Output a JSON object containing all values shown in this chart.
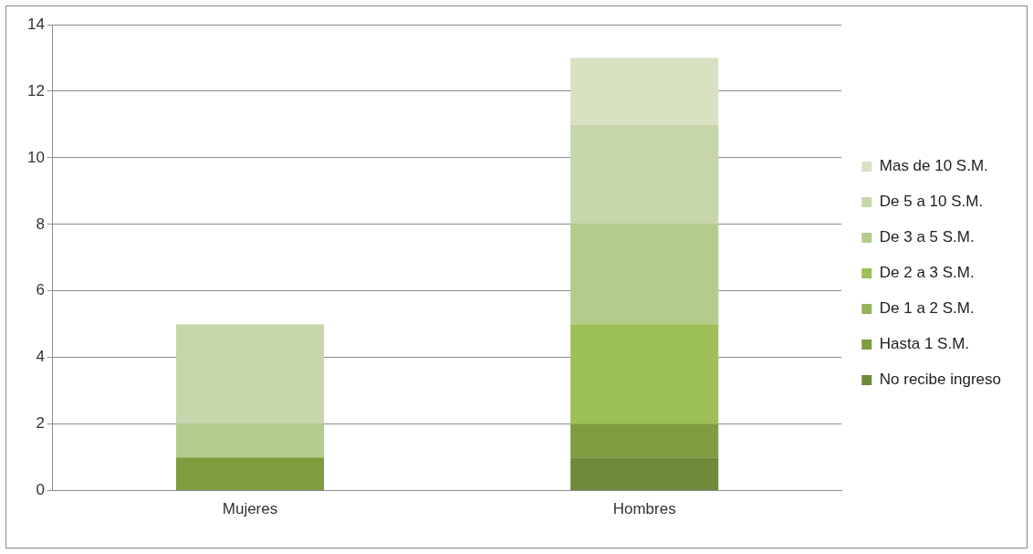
{
  "chart_data": {
    "type": "bar",
    "stacked": true,
    "categories": [
      "Mujeres",
      "Hombres"
    ],
    "series": [
      {
        "name": "No recibe ingreso",
        "color": "#6e8a3a",
        "values": [
          0,
          1
        ]
      },
      {
        "name": "Hasta 1 S.M.",
        "color": "#7f9c3e",
        "values": [
          1,
          1
        ]
      },
      {
        "name": "De 1 a 2 S.M.",
        "color": "#94b25a",
        "values": [
          0,
          0
        ]
      },
      {
        "name": "De 2 a 3 S.M.",
        "color": "#9cc056",
        "values": [
          0,
          3
        ]
      },
      {
        "name": "De 3 a 5 S.M.",
        "color": "#b3cc8c",
        "values": [
          1,
          3
        ]
      },
      {
        "name": "De 5 a 10 S.M.",
        "color": "#c6d6aa",
        "values": [
          3,
          3
        ]
      },
      {
        "name": "Mas de 10 S.M.",
        "color": "#d6e2c2",
        "values": [
          0,
          2
        ]
      }
    ],
    "ylim": [
      0,
      14
    ],
    "yticks": [
      0,
      2,
      4,
      6,
      8,
      10,
      12,
      14
    ],
    "grid": "y",
    "legend": "right"
  }
}
